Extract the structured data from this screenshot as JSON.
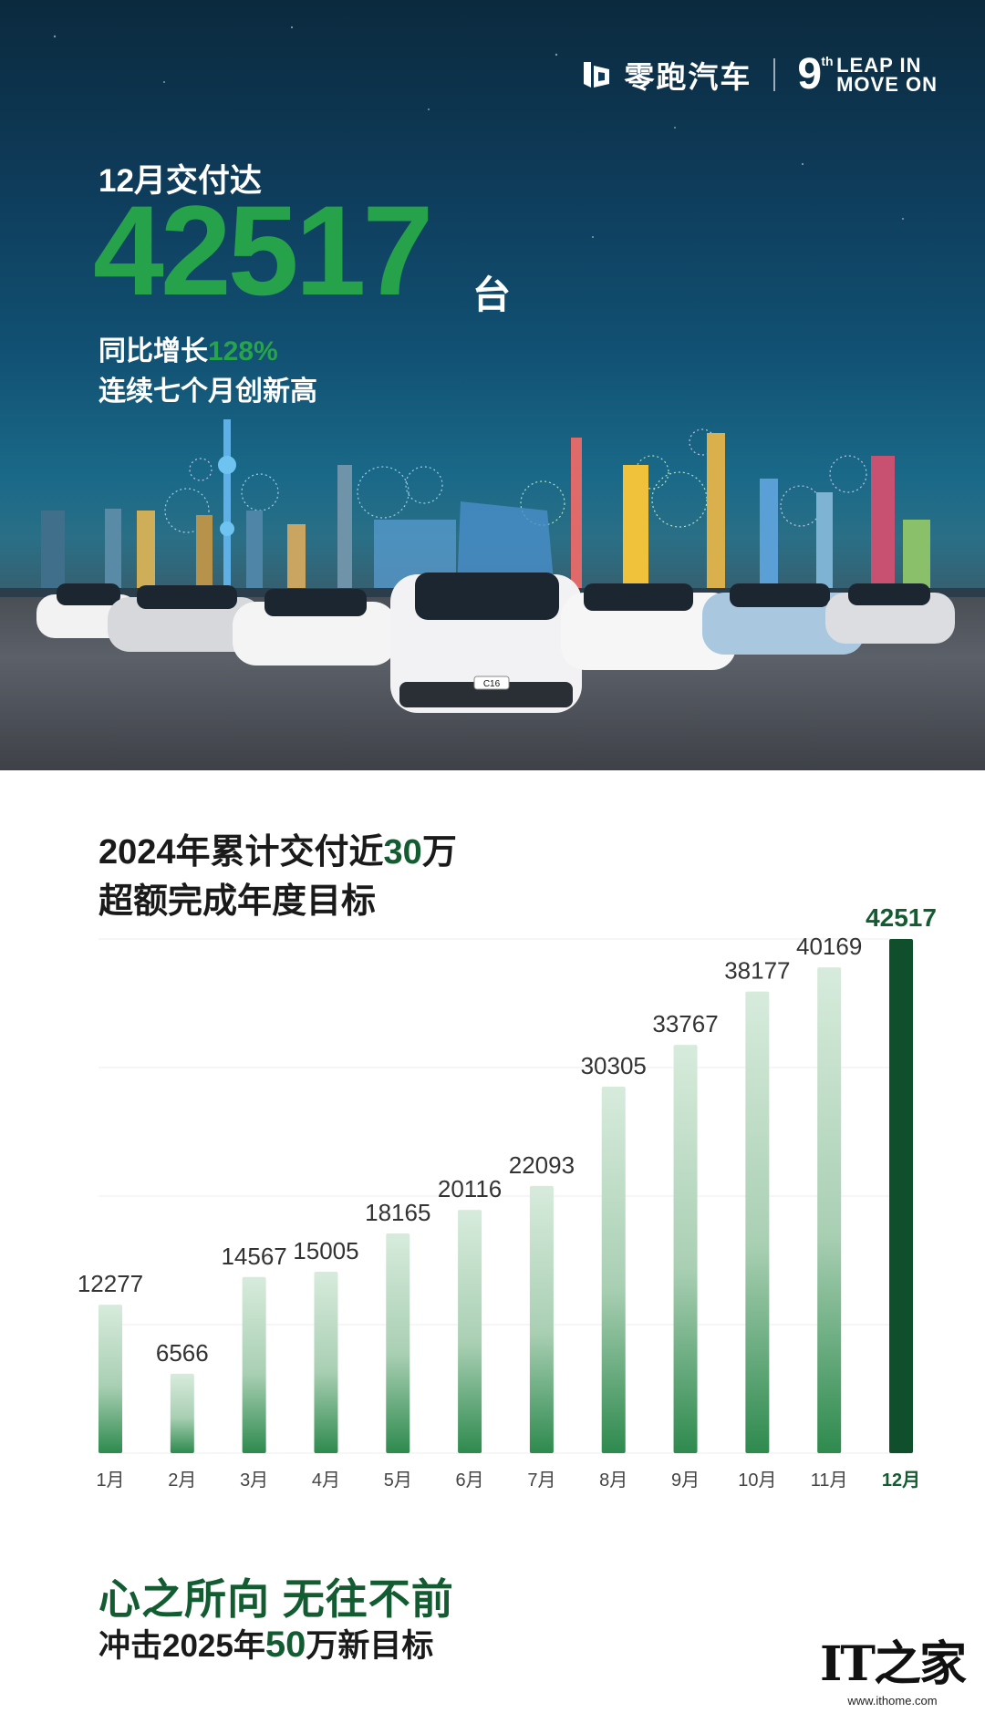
{
  "header": {
    "brand_name": "零跑汽车",
    "anniv_number": "9",
    "anniv_suffix": "th",
    "slogan_line1": "LEAP IN",
    "slogan_line2": "MOVE ON"
  },
  "hero": {
    "month_label": "12月交付达",
    "deliveries": "42517",
    "unit": "台",
    "yoy_prefix": "同比增长",
    "yoy_value": "128%",
    "streak": "连续七个月创新高",
    "car_plate": "C16"
  },
  "section": {
    "title_part1": "2024年累计交付近",
    "title_highlight": "30",
    "title_part2": "万",
    "subtitle": "超额完成年度目标"
  },
  "chart_data": {
    "type": "bar",
    "categories": [
      "1月",
      "2月",
      "3月",
      "4月",
      "5月",
      "6月",
      "7月",
      "8月",
      "9月",
      "10月",
      "11月",
      "12月"
    ],
    "values": [
      12277,
      6566,
      14567,
      15005,
      18165,
      20116,
      22093,
      30305,
      33767,
      38177,
      40169,
      42517
    ],
    "highlight_index": 11,
    "ylim": [
      0,
      42517
    ],
    "grid": true,
    "colors": {
      "bar": "#2e8a4e",
      "highlight": "#0f4f2b",
      "label": "#333333",
      "highlight_label": "#135c31"
    }
  },
  "footer": {
    "motto": "心之所向 无往不前",
    "target_part1": "冲击2025年",
    "target_highlight": "50",
    "target_part2": "万新目标"
  },
  "watermark": {
    "logo": "IT之家",
    "url": "www.ithome.com"
  }
}
